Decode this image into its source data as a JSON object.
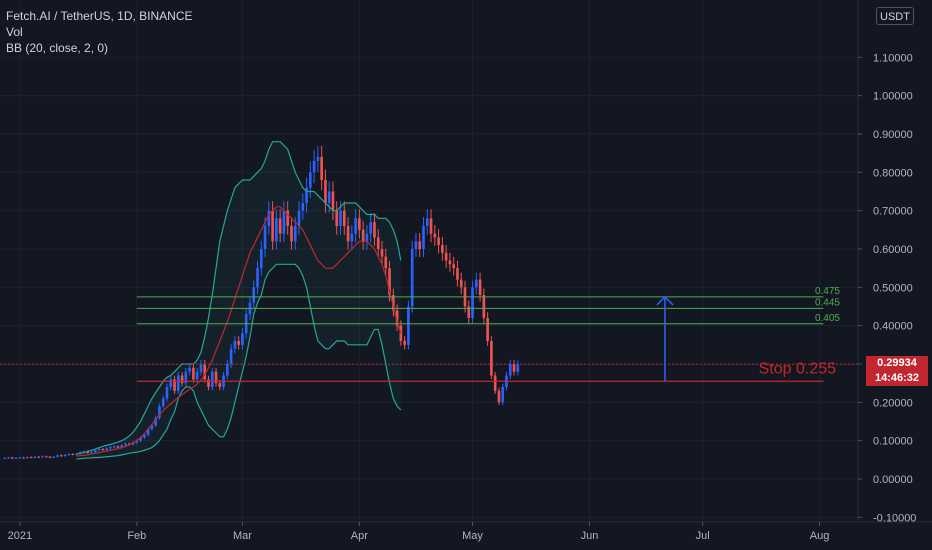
{
  "legend": {
    "symbol": "Fetch.AI / TetherUS, 1D, BINANCE",
    "volume": "Vol",
    "indicator": "BB (20, close, 2, 0)"
  },
  "currency_badge": "USDT",
  "last_price": {
    "value": "0.29934",
    "countdown": "14:46:32"
  },
  "colors": {
    "background": "#131722",
    "grid": "#1e222d",
    "up": "#2962ff",
    "down": "#ef5350",
    "bb_band": "#26a69a",
    "bb_basis": "#c2272f",
    "level_line": "#4caf50",
    "stop_line": "#c2272f",
    "arrow": "#2962ff"
  },
  "chart_data": {
    "type": "candlestick",
    "title": "Fetch.AI / TetherUS, 1D, BINANCE",
    "y_axis": {
      "ticks": [
        "-0.10000",
        "0.00000",
        "0.10000",
        "0.20000",
        "0.30000",
        "0.40000",
        "0.50000",
        "0.60000",
        "0.70000",
        "0.80000",
        "0.90000",
        "1.00000",
        "1.10000"
      ],
      "ylim": [
        -0.1,
        1.2
      ]
    },
    "x_axis": {
      "ticks": [
        "2021",
        "Feb",
        "Mar",
        "Apr",
        "May",
        "Jun",
        "Jul",
        "Aug"
      ],
      "ticks_dates": [
        "2021-01-01",
        "2021-02-01",
        "2021-03-01",
        "2021-04-01",
        "2021-05-01",
        "2021-06-01",
        "2021-07-01",
        "2021-08-01"
      ],
      "xlim": [
        "2020-12-27",
        "2021-08-08"
      ]
    },
    "candles_start": "2020-12-28",
    "close": [
      0.055,
      0.056,
      0.054,
      0.055,
      0.056,
      0.055,
      0.057,
      0.056,
      0.058,
      0.057,
      0.059,
      0.058,
      0.056,
      0.058,
      0.062,
      0.06,
      0.063,
      0.065,
      0.064,
      0.066,
      0.07,
      0.072,
      0.068,
      0.07,
      0.075,
      0.078,
      0.076,
      0.08,
      0.083,
      0.085,
      0.082,
      0.088,
      0.092,
      0.09,
      0.095,
      0.1,
      0.108,
      0.115,
      0.13,
      0.14,
      0.16,
      0.19,
      0.21,
      0.24,
      0.26,
      0.23,
      0.27,
      0.25,
      0.28,
      0.29,
      0.26,
      0.28,
      0.3,
      0.26,
      0.24,
      0.28,
      0.25,
      0.24,
      0.27,
      0.3,
      0.34,
      0.36,
      0.35,
      0.38,
      0.43,
      0.46,
      0.5,
      0.55,
      0.6,
      0.66,
      0.7,
      0.62,
      0.68,
      0.64,
      0.7,
      0.66,
      0.62,
      0.66,
      0.7,
      0.72,
      0.76,
      0.8,
      0.83,
      0.84,
      0.78,
      0.72,
      0.75,
      0.7,
      0.66,
      0.7,
      0.66,
      0.62,
      0.64,
      0.68,
      0.65,
      0.62,
      0.64,
      0.67,
      0.63,
      0.6,
      0.58,
      0.55,
      0.48,
      0.44,
      0.4,
      0.36,
      0.35,
      0.45,
      0.6,
      0.62,
      0.6,
      0.66,
      0.68,
      0.64,
      0.63,
      0.61,
      0.59,
      0.57,
      0.56,
      0.55,
      0.52,
      0.5,
      0.45,
      0.42,
      0.5,
      0.52,
      0.48,
      0.42,
      0.36,
      0.27,
      0.23,
      0.2,
      0.24,
      0.27,
      0.3,
      0.28,
      0.29934
    ],
    "open": [
      0.054,
      0.055,
      0.056,
      0.054,
      0.055,
      0.056,
      0.055,
      0.057,
      0.056,
      0.058,
      0.057,
      0.059,
      0.058,
      0.056,
      0.058,
      0.062,
      0.06,
      0.063,
      0.065,
      0.064,
      0.066,
      0.07,
      0.072,
      0.068,
      0.07,
      0.075,
      0.078,
      0.076,
      0.08,
      0.083,
      0.085,
      0.082,
      0.088,
      0.092,
      0.09,
      0.095,
      0.1,
      0.108,
      0.115,
      0.13,
      0.14,
      0.16,
      0.19,
      0.21,
      0.24,
      0.26,
      0.23,
      0.27,
      0.25,
      0.28,
      0.29,
      0.26,
      0.28,
      0.3,
      0.26,
      0.24,
      0.28,
      0.25,
      0.24,
      0.27,
      0.3,
      0.34,
      0.36,
      0.35,
      0.38,
      0.43,
      0.46,
      0.5,
      0.55,
      0.6,
      0.66,
      0.7,
      0.62,
      0.68,
      0.64,
      0.7,
      0.66,
      0.62,
      0.66,
      0.7,
      0.72,
      0.76,
      0.8,
      0.83,
      0.84,
      0.78,
      0.72,
      0.75,
      0.7,
      0.66,
      0.7,
      0.66,
      0.62,
      0.64,
      0.68,
      0.65,
      0.62,
      0.64,
      0.67,
      0.63,
      0.6,
      0.58,
      0.55,
      0.48,
      0.44,
      0.4,
      0.36,
      0.35,
      0.45,
      0.6,
      0.62,
      0.6,
      0.66,
      0.68,
      0.64,
      0.63,
      0.61,
      0.59,
      0.57,
      0.56,
      0.55,
      0.52,
      0.5,
      0.45,
      0.42,
      0.5,
      0.52,
      0.48,
      0.42,
      0.36,
      0.27,
      0.23,
      0.2,
      0.24,
      0.27,
      0.3,
      0.28
    ],
    "bollinger": {
      "start": "2021-01-16",
      "upper": [
        0.065,
        0.067,
        0.069,
        0.072,
        0.075,
        0.078,
        0.082,
        0.085,
        0.088,
        0.09,
        0.093,
        0.096,
        0.1,
        0.105,
        0.112,
        0.122,
        0.135,
        0.15,
        0.17,
        0.19,
        0.21,
        0.225,
        0.24,
        0.255,
        0.265,
        0.27,
        0.28,
        0.29,
        0.3,
        0.3,
        0.3,
        0.3,
        0.31,
        0.33,
        0.37,
        0.42,
        0.48,
        0.55,
        0.62,
        0.66,
        0.7,
        0.73,
        0.76,
        0.77,
        0.78,
        0.78,
        0.78,
        0.79,
        0.8,
        0.81,
        0.83,
        0.86,
        0.88,
        0.88,
        0.88,
        0.87,
        0.86,
        0.83,
        0.8,
        0.78,
        0.76,
        0.75,
        0.75,
        0.75,
        0.74,
        0.73,
        0.72,
        0.71,
        0.7,
        0.7,
        0.71,
        0.72,
        0.72,
        0.72,
        0.72,
        0.71,
        0.7,
        0.69,
        0.69,
        0.69,
        0.68,
        0.68,
        0.68,
        0.67,
        0.65,
        0.62,
        0.57
      ],
      "basis": [
        0.06,
        0.061,
        0.062,
        0.063,
        0.065,
        0.067,
        0.069,
        0.071,
        0.073,
        0.075,
        0.077,
        0.079,
        0.082,
        0.085,
        0.089,
        0.094,
        0.1,
        0.108,
        0.118,
        0.13,
        0.142,
        0.155,
        0.167,
        0.178,
        0.188,
        0.196,
        0.205,
        0.213,
        0.22,
        0.227,
        0.234,
        0.24,
        0.248,
        0.258,
        0.272,
        0.29,
        0.31,
        0.335,
        0.36,
        0.385,
        0.41,
        0.44,
        0.47,
        0.5,
        0.53,
        0.56,
        0.59,
        0.61,
        0.63,
        0.65,
        0.67,
        0.69,
        0.7,
        0.71,
        0.71,
        0.7,
        0.69,
        0.68,
        0.67,
        0.66,
        0.65,
        0.63,
        0.61,
        0.59,
        0.57,
        0.56,
        0.55,
        0.55,
        0.55,
        0.56,
        0.57,
        0.58,
        0.59,
        0.6,
        0.61,
        0.62,
        0.62,
        0.62,
        0.61,
        0.6,
        0.58,
        0.56,
        0.53,
        0.49,
        0.45,
        0.41,
        0.38
      ],
      "lower": [
        0.052,
        0.053,
        0.054,
        0.055,
        0.055,
        0.056,
        0.056,
        0.057,
        0.058,
        0.059,
        0.06,
        0.061,
        0.063,
        0.065,
        0.067,
        0.069,
        0.07,
        0.072,
        0.075,
        0.078,
        0.082,
        0.09,
        0.1,
        0.115,
        0.13,
        0.155,
        0.175,
        0.21,
        0.23,
        0.24,
        0.24,
        0.23,
        0.2,
        0.18,
        0.16,
        0.14,
        0.13,
        0.12,
        0.11,
        0.11,
        0.13,
        0.16,
        0.2,
        0.24,
        0.28,
        0.32,
        0.37,
        0.43,
        0.46,
        0.48,
        0.52,
        0.54,
        0.55,
        0.56,
        0.56,
        0.56,
        0.56,
        0.56,
        0.56,
        0.55,
        0.53,
        0.5,
        0.45,
        0.4,
        0.36,
        0.35,
        0.34,
        0.34,
        0.35,
        0.36,
        0.36,
        0.36,
        0.35,
        0.35,
        0.35,
        0.35,
        0.35,
        0.35,
        0.37,
        0.39,
        0.39,
        0.35,
        0.3,
        0.25,
        0.21,
        0.19,
        0.18
      ]
    },
    "levels": [
      {
        "label": "0.475",
        "value": 0.475
      },
      {
        "label": "0.445",
        "value": 0.445
      },
      {
        "label": "0.405",
        "value": 0.405
      }
    ],
    "stop": {
      "label": "Stop 0.255",
      "value": 0.255
    },
    "current_price": 0.29934,
    "target_arrow": {
      "date": "2021-06-21",
      "from": 0.255,
      "to": 0.475
    }
  }
}
